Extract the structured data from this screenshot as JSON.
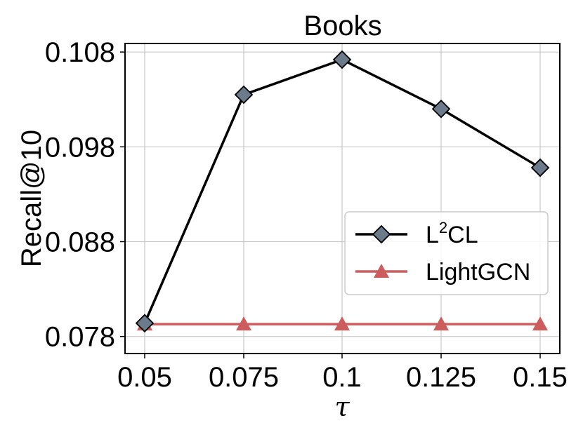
{
  "chart_data": {
    "type": "line",
    "title": "Books",
    "xlabel": "τ",
    "ylabel": "Recall@10",
    "categories": [
      "0.05",
      "0.075",
      "0.1",
      "0.125",
      "0.15"
    ],
    "yticks": [
      "0.078",
      "0.088",
      "0.098",
      "0.108"
    ],
    "ytick_values": [
      0.078,
      0.088,
      0.098,
      0.108
    ],
    "ylim": [
      0.0762,
      0.1089
    ],
    "grid": true,
    "legend_position": "center-right",
    "series": [
      {
        "name": "L",
        "name_superscript": "2",
        "name_suffix": "CL",
        "values": [
          0.0794,
          0.1035,
          0.1072,
          0.102,
          0.0958
        ],
        "color": "#000000",
        "marker": "diamond",
        "marker_color": "#6b7b8c"
      },
      {
        "name": "LightGCN",
        "values": [
          0.0793,
          0.0793,
          0.0793,
          0.0793,
          0.0793
        ],
        "color": "#cd5c5c",
        "marker": "triangle",
        "marker_color": "#cd5c5c"
      }
    ]
  }
}
